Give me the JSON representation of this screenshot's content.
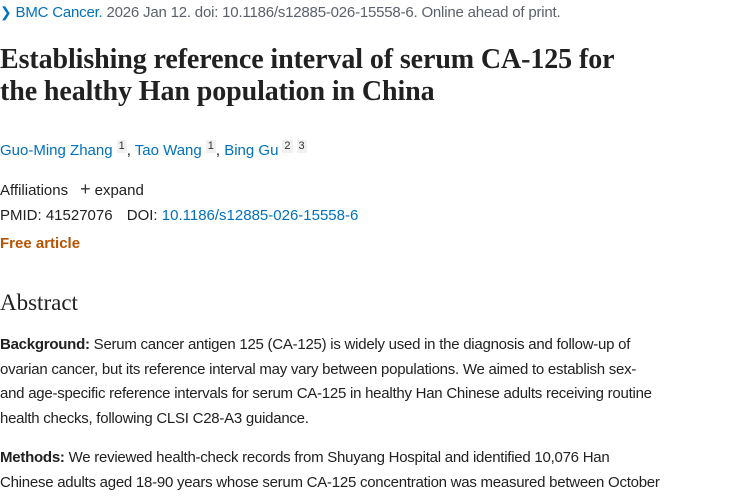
{
  "citation": {
    "journal": "BMC Cancer.",
    "details": " 2026 Jan 12. doi: 10.1186/s12885-026-15558-6. Online ahead of print."
  },
  "title_lines": [
    "Establishing reference interval of serum CA-125 for",
    "the healthy Han population in China"
  ],
  "authors": [
    {
      "name": "Guo-Ming Zhang",
      "affs": [
        "1"
      ]
    },
    {
      "name": "Tao Wang",
      "affs": [
        "1"
      ]
    },
    {
      "name": "Bing Gu",
      "affs": [
        "2",
        "3"
      ]
    }
  ],
  "affiliations": {
    "label": "Affiliations",
    "expand": "expand"
  },
  "ids": {
    "pmid_label": "PMID:",
    "pmid": "41527076",
    "doi_label": "DOI:",
    "doi": "10.1186/s12885-026-15558-6"
  },
  "free_article": "Free article",
  "abstract": {
    "heading": "Abstract",
    "background": {
      "label": "Background:",
      "lines": [
        " Serum cancer antigen 125 (CA-125) is widely used in the diagnosis and follow-up of",
        "ovarian cancer, but its reference interval may vary between populations. We aimed to establish sex-",
        "and age-specific reference intervals for serum CA-125 in healthy Han Chinese adults receiving routine",
        "health checks, following CLSI C28-A3 guidance."
      ]
    },
    "methods": {
      "label": "Methods:",
      "lines": [
        " We reviewed health-check records from Shuyang Hospital and identified 10,076 Han",
        "Chinese adults aged 18-90 years whose serum CA-125 concentration was measured between October"
      ]
    }
  }
}
